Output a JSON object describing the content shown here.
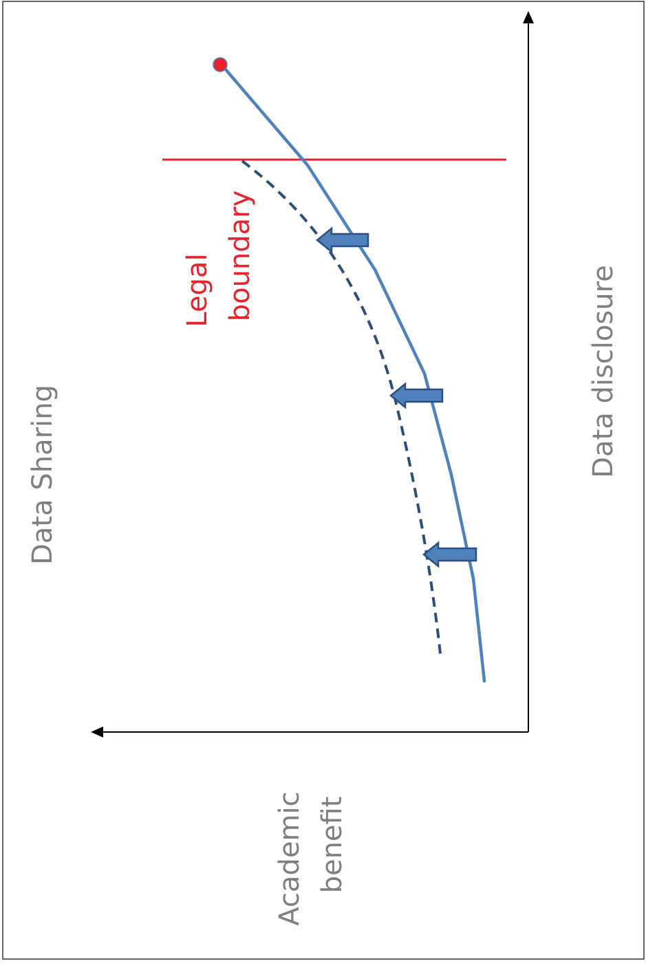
{
  "title": "Data Sharing",
  "axis_y_label": "Data disclosure",
  "axis_x_label_line1": "Academic",
  "axis_x_label_line2": "benefit",
  "boundary_label_line1": "Legal",
  "boundary_label_line2": "boundary",
  "colors": {
    "axis": "#000000",
    "text": "#7f7f7f",
    "boundary": "#e8222a",
    "curve": "#4f81bd",
    "dashed": "#2e4e7a",
    "arrow_fill": "#4f81bd",
    "arrow_stroke": "#2c4e7e",
    "marker": "#e8222a"
  }
}
